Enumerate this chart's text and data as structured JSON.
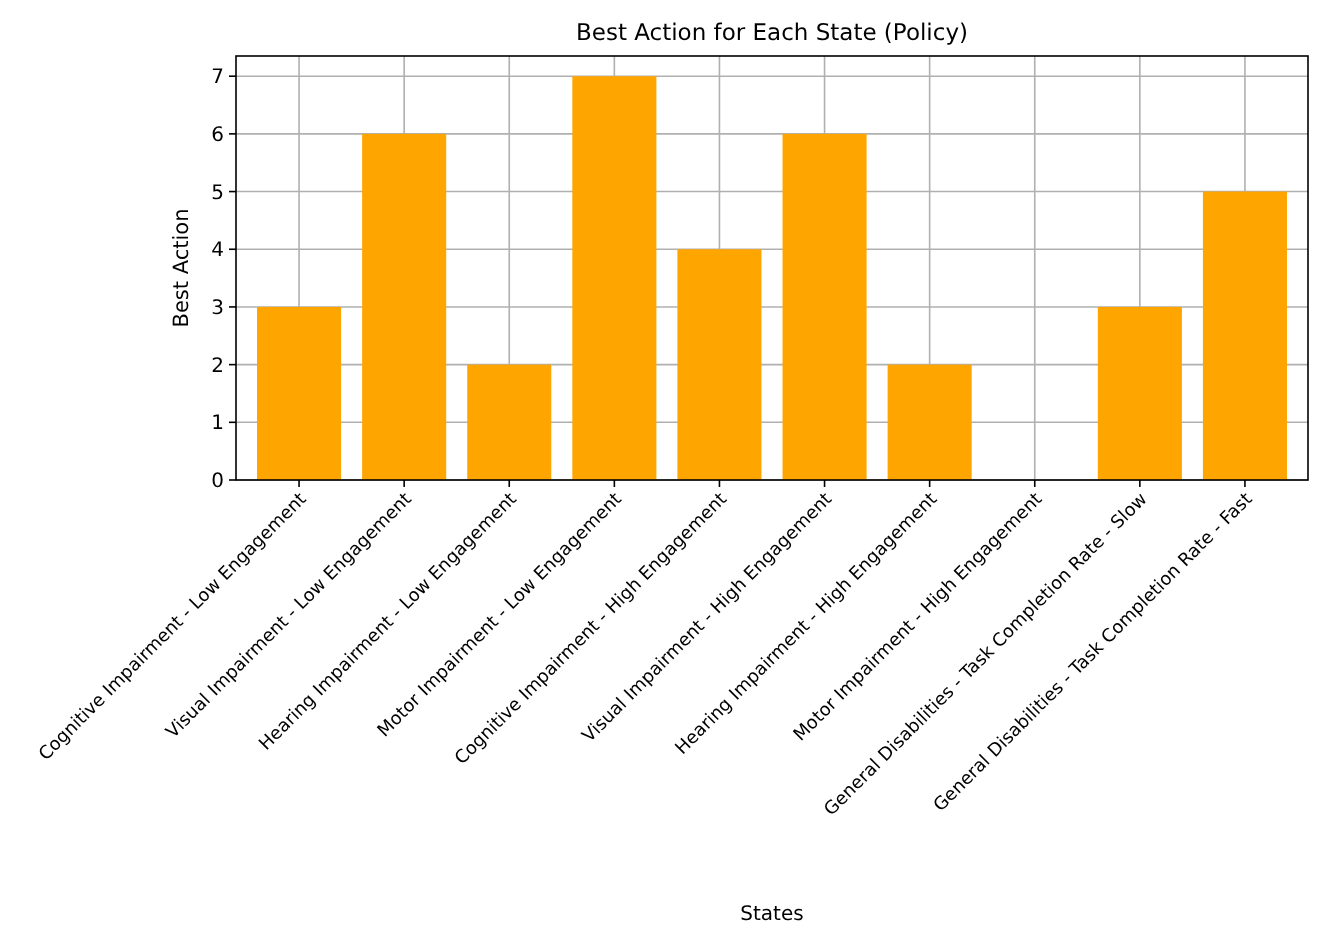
{
  "chart_data": {
    "type": "bar",
    "title": "Best Action for Each State (Policy)",
    "xlabel": "States",
    "ylabel": "Best Action",
    "categories": [
      "Cognitive Impairment - Low Engagement",
      "Visual Impairment - Low Engagement",
      "Hearing Impairment - Low Engagement",
      "Motor Impairment - Low Engagement",
      "Cognitive Impairment - High Engagement",
      "Visual Impairment - High Engagement",
      "Hearing Impairment - High Engagement",
      "Motor Impairment - High Engagement",
      "General Disabilities - Task Completion Rate - Slow",
      "General Disabilities - Task Completion Rate - Fast"
    ],
    "values": [
      3,
      6,
      2,
      7,
      4,
      6,
      2,
      0,
      3,
      5
    ],
    "color": "#ffa500",
    "ylim": [
      0,
      7.35
    ],
    "yticks": [
      0,
      1,
      2,
      3,
      4,
      5,
      6,
      7
    ],
    "grid": true
  }
}
